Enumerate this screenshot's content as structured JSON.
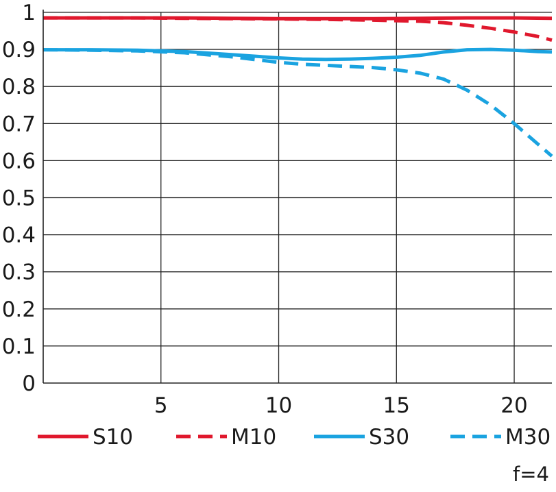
{
  "chart_data": {
    "type": "line",
    "title": "",
    "xlabel": "",
    "ylabel": "",
    "xlim": [
      0,
      21.6
    ],
    "ylim": [
      0,
      1
    ],
    "xticks": [
      5,
      10,
      15,
      20
    ],
    "yticks": [
      0,
      0.1,
      0.2,
      0.3,
      0.4,
      0.5,
      0.6,
      0.7,
      0.8,
      0.9,
      1
    ],
    "ytick_labels": [
      "0",
      "0.1",
      "0.2",
      "0.3",
      "0.4",
      "0.5",
      "0.6",
      "0.7",
      "0.8",
      "0.9",
      "1"
    ],
    "xtick_labels": [
      "5",
      "10",
      "15",
      "20"
    ],
    "grid": true,
    "legend_position": "bottom",
    "note": "f=4",
    "series": [
      {
        "name": "S10",
        "color": "#e0182d",
        "dash": "solid",
        "x": [
          0,
          2,
          4,
          6,
          8,
          10,
          12,
          14,
          16,
          18,
          20,
          21.6
        ],
        "y": [
          0.985,
          0.985,
          0.985,
          0.985,
          0.984,
          0.983,
          0.983,
          0.983,
          0.984,
          0.985,
          0.985,
          0.984
        ]
      },
      {
        "name": "M10",
        "color": "#e0182d",
        "dash": "dashed",
        "x": [
          0,
          2,
          4,
          6,
          8,
          10,
          12,
          14,
          16,
          17,
          18,
          19,
          20,
          21,
          21.6
        ],
        "y": [
          0.985,
          0.985,
          0.985,
          0.984,
          0.983,
          0.982,
          0.981,
          0.979,
          0.976,
          0.972,
          0.965,
          0.957,
          0.947,
          0.935,
          0.925
        ]
      },
      {
        "name": "S30",
        "color": "#1aa3e0",
        "dash": "solid",
        "x": [
          0,
          2,
          4,
          6,
          8,
          10,
          11,
          12,
          13,
          14,
          15,
          16,
          17,
          18,
          19,
          20,
          21,
          21.6
        ],
        "y": [
          0.899,
          0.899,
          0.898,
          0.894,
          0.886,
          0.877,
          0.874,
          0.873,
          0.874,
          0.876,
          0.879,
          0.884,
          0.893,
          0.899,
          0.9,
          0.898,
          0.894,
          0.893
        ]
      },
      {
        "name": "M30",
        "color": "#1aa3e0",
        "dash": "dashed",
        "x": [
          0,
          2,
          4,
          6,
          8,
          10,
          11,
          12,
          13,
          14,
          15,
          16,
          17,
          18,
          19,
          20,
          21,
          21.6
        ],
        "y": [
          0.899,
          0.898,
          0.896,
          0.891,
          0.88,
          0.865,
          0.86,
          0.857,
          0.854,
          0.851,
          0.845,
          0.836,
          0.82,
          0.79,
          0.75,
          0.7,
          0.645,
          0.612
        ]
      }
    ]
  }
}
